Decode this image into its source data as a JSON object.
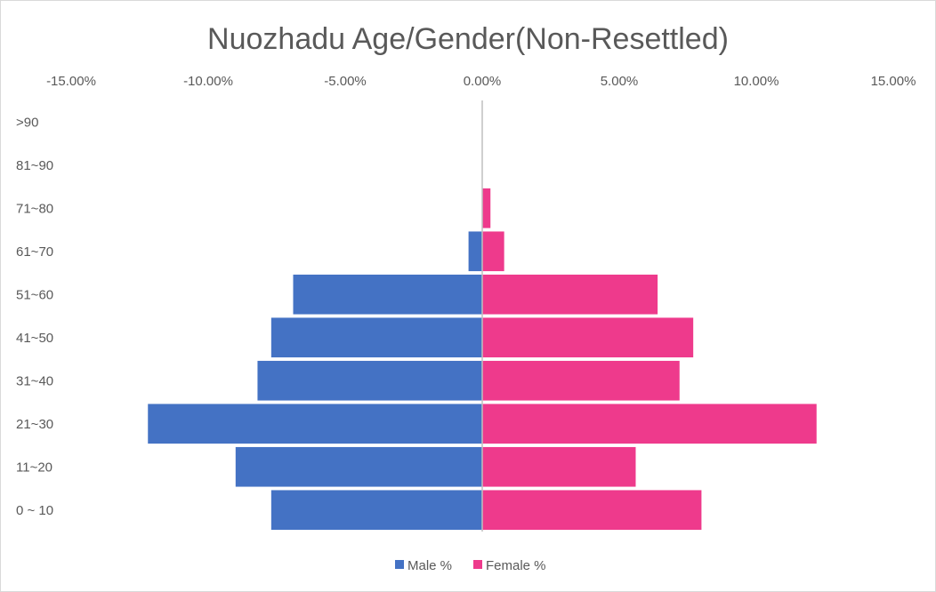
{
  "chart_data": {
    "type": "bar",
    "orientation": "horizontal",
    "title": "Nuozhadu Age/Gender(Non-Resettled)",
    "categories": [
      "0 ~ 10",
      "11~20",
      "21~30",
      "31~40",
      "41~50",
      "51~60",
      "61~70",
      "71~80",
      "81~90",
      ">90"
    ],
    "series": [
      {
        "name": "Male %",
        "color": "#4472c4",
        "values": [
          -7.7,
          -9.0,
          -12.2,
          -8.2,
          -7.7,
          -6.9,
          -0.5,
          0,
          0,
          0
        ]
      },
      {
        "name": "Female %",
        "color": "#ee3a8c",
        "values": [
          8.0,
          5.6,
          12.2,
          7.2,
          7.7,
          6.4,
          0.8,
          0.3,
          0,
          0
        ]
      }
    ],
    "xlim": [
      -15,
      15
    ],
    "xticks": [
      -15,
      -10,
      -5,
      0,
      5,
      10,
      15
    ],
    "xtick_labels": [
      "-15.00%",
      "-10.00%",
      "-5.00%",
      "0.00%",
      "5.00%",
      "10.00%",
      "15.00%"
    ],
    "xaxis_position": "top",
    "grid": false,
    "legend": "bottom"
  }
}
